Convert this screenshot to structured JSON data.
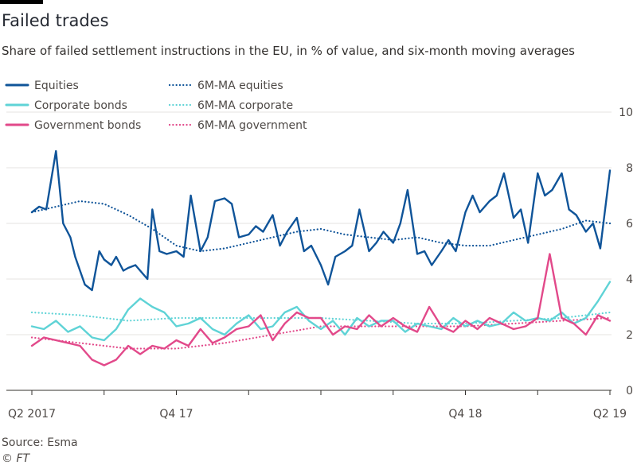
{
  "header": {
    "title": "Failed trades",
    "subtitle": "Share of failed settlement instructions in the EU, in % of value, and six-month moving averages"
  },
  "footer": {
    "source": "Source: Esma",
    "credit": "© FT"
  },
  "colors": {
    "equities": "#0f5499",
    "corporate": "#5fd3d6",
    "government": "#e2498a",
    "grid": "#e6e3e0",
    "axis": "#33302e"
  },
  "chart_data": {
    "type": "line",
    "title": "Failed trades",
    "xlabel": "",
    "ylabel": "",
    "ylim": [
      0,
      10
    ],
    "y_ticks": [
      0,
      2,
      4,
      6,
      8,
      10
    ],
    "x_range": [
      "2017-04",
      "2019-04"
    ],
    "x_ticks": [
      {
        "label": "Q2 2017",
        "month": 0
      },
      {
        "label": "Q4 17",
        "month": 6
      },
      {
        "label": "Q4 18",
        "month": 18
      },
      {
        "label": "Q2 19",
        "month": 24
      }
    ],
    "x_minor_ticks": [
      0,
      3,
      6,
      9,
      12,
      15,
      18,
      21,
      24
    ],
    "grid": true,
    "legend_position": "top-left",
    "legend": [
      {
        "label": "Equities",
        "style": "solid",
        "color_key": "equities"
      },
      {
        "label": "Corporate bonds",
        "style": "solid",
        "color_key": "corporate"
      },
      {
        "label": "Government bonds",
        "style": "solid",
        "color_key": "government"
      },
      {
        "label": "6M-MA equities",
        "style": "dotted",
        "color_key": "equities"
      },
      {
        "label": "6M-MA corporate",
        "style": "dotted",
        "color_key": "corporate"
      },
      {
        "label": "6M-MA government",
        "style": "dotted",
        "color_key": "government"
      }
    ],
    "x_unit": "months since Apr 2017",
    "series": [
      {
        "name": "Equities",
        "style": "solid",
        "color_key": "equities",
        "x": [
          0,
          0.3,
          0.6,
          1.0,
          1.3,
          1.6,
          1.8,
          2.0,
          2.2,
          2.5,
          2.8,
          3.0,
          3.3,
          3.5,
          3.8,
          4.0,
          4.3,
          4.6,
          4.8,
          5.0,
          5.3,
          5.6,
          6.0,
          6.3,
          6.6,
          7.0,
          7.3,
          7.6,
          8.0,
          8.3,
          8.6,
          9.0,
          9.3,
          9.6,
          10.0,
          10.3,
          10.6,
          11.0,
          11.3,
          11.6,
          12.0,
          12.3,
          12.6,
          13.0,
          13.3,
          13.6,
          14.0,
          14.3,
          14.6,
          15.0,
          15.3,
          15.6,
          16.0,
          16.3,
          16.6,
          17.0,
          17.3,
          17.6,
          18.0,
          18.3,
          18.6,
          19.0,
          19.3,
          19.6,
          20.0,
          20.3,
          20.6,
          21.0,
          21.3,
          21.6,
          22.0,
          22.3,
          22.6,
          23.0,
          23.3,
          23.6,
          24.0
        ],
        "y": [
          6.4,
          6.6,
          6.5,
          8.6,
          6.0,
          5.5,
          4.8,
          4.3,
          3.8,
          3.6,
          5.0,
          4.7,
          4.5,
          4.8,
          4.3,
          4.4,
          4.5,
          4.2,
          4.0,
          6.5,
          5.0,
          4.9,
          5.0,
          4.8,
          7.0,
          5.0,
          5.5,
          6.8,
          6.9,
          6.7,
          5.5,
          5.6,
          5.9,
          5.7,
          6.3,
          5.2,
          5.7,
          6.2,
          5.0,
          5.2,
          4.5,
          3.8,
          4.8,
          5.0,
          5.2,
          6.5,
          5.0,
          5.3,
          5.7,
          5.3,
          6.0,
          7.2,
          4.9,
          5.0,
          4.5,
          5.0,
          5.4,
          5.0,
          6.4,
          7.0,
          6.4,
          6.8,
          7.0,
          7.8,
          6.2,
          6.5,
          5.3,
          7.8,
          7.0,
          7.2,
          7.8,
          6.5,
          6.3,
          5.7,
          6.0,
          5.1,
          7.9
        ]
      },
      {
        "name": "Corporate bonds",
        "style": "solid",
        "color_key": "corporate",
        "x": [
          0,
          0.5,
          1.0,
          1.5,
          2.0,
          2.5,
          3.0,
          3.5,
          4.0,
          4.5,
          5.0,
          5.5,
          6.0,
          6.5,
          7.0,
          7.5,
          8.0,
          8.5,
          9.0,
          9.5,
          10.0,
          10.5,
          11.0,
          11.5,
          12.0,
          12.5,
          13.0,
          13.5,
          14.0,
          14.5,
          15.0,
          15.5,
          16.0,
          16.5,
          17.0,
          17.5,
          18.0,
          18.5,
          19.0,
          19.5,
          20.0,
          20.5,
          21.0,
          21.5,
          22.0,
          22.5,
          23.0,
          23.5,
          24.0
        ],
        "y": [
          2.3,
          2.2,
          2.5,
          2.1,
          2.3,
          1.9,
          1.8,
          2.2,
          2.9,
          3.3,
          3.0,
          2.8,
          2.3,
          2.4,
          2.6,
          2.2,
          2.0,
          2.4,
          2.7,
          2.2,
          2.3,
          2.8,
          3.0,
          2.5,
          2.2,
          2.5,
          2.0,
          2.6,
          2.3,
          2.5,
          2.5,
          2.1,
          2.4,
          2.3,
          2.2,
          2.6,
          2.3,
          2.5,
          2.3,
          2.4,
          2.8,
          2.5,
          2.6,
          2.5,
          2.8,
          2.4,
          2.6,
          3.2,
          3.9
        ]
      },
      {
        "name": "Government bonds",
        "style": "solid",
        "color_key": "government",
        "x": [
          0,
          0.5,
          1.0,
          1.5,
          2.0,
          2.5,
          3.0,
          3.5,
          4.0,
          4.5,
          5.0,
          5.5,
          6.0,
          6.5,
          7.0,
          7.5,
          8.0,
          8.5,
          9.0,
          9.5,
          10.0,
          10.5,
          11.0,
          11.5,
          12.0,
          12.5,
          13.0,
          13.5,
          14.0,
          14.5,
          15.0,
          15.5,
          16.0,
          16.5,
          17.0,
          17.5,
          18.0,
          18.5,
          19.0,
          19.5,
          20.0,
          20.5,
          21.0,
          21.5,
          22.0,
          22.5,
          23.0,
          23.5,
          24.0
        ],
        "y": [
          1.6,
          1.9,
          1.8,
          1.7,
          1.6,
          1.1,
          0.9,
          1.1,
          1.6,
          1.3,
          1.6,
          1.5,
          1.8,
          1.6,
          2.2,
          1.7,
          1.9,
          2.2,
          2.3,
          2.7,
          1.8,
          2.4,
          2.8,
          2.6,
          2.6,
          2.0,
          2.3,
          2.2,
          2.7,
          2.3,
          2.6,
          2.3,
          2.1,
          3.0,
          2.3,
          2.1,
          2.5,
          2.2,
          2.6,
          2.4,
          2.2,
          2.3,
          2.6,
          4.9,
          2.6,
          2.4,
          2.0,
          2.7,
          2.5
        ]
      },
      {
        "name": "6M-MA equities",
        "style": "dotted",
        "color_key": "equities",
        "x": [
          0,
          1,
          2,
          3,
          4,
          5,
          6,
          7,
          8,
          9,
          10,
          11,
          12,
          13,
          14,
          15,
          16,
          17,
          18,
          19,
          20,
          21,
          22,
          23,
          24
        ],
        "y": [
          6.4,
          6.6,
          6.8,
          6.7,
          6.3,
          5.8,
          5.2,
          5.0,
          5.1,
          5.3,
          5.5,
          5.7,
          5.8,
          5.6,
          5.5,
          5.4,
          5.5,
          5.3,
          5.2,
          5.2,
          5.4,
          5.6,
          5.8,
          6.1,
          6.0
        ]
      },
      {
        "name": "6M-MA corporate",
        "style": "dotted",
        "color_key": "corporate",
        "x": [
          0,
          2,
          4,
          6,
          8,
          10,
          12,
          14,
          16,
          18,
          20,
          22,
          24
        ],
        "y": [
          2.8,
          2.7,
          2.5,
          2.6,
          2.6,
          2.6,
          2.6,
          2.5,
          2.4,
          2.4,
          2.5,
          2.6,
          2.8
        ]
      },
      {
        "name": "6M-MA government",
        "style": "dotted",
        "color_key": "government",
        "x": [
          0,
          2,
          4,
          6,
          8,
          10,
          12,
          14,
          16,
          18,
          20,
          22,
          24
        ],
        "y": [
          1.9,
          1.7,
          1.5,
          1.5,
          1.7,
          2.0,
          2.3,
          2.3,
          2.3,
          2.3,
          2.4,
          2.5,
          2.6
        ]
      }
    ]
  }
}
